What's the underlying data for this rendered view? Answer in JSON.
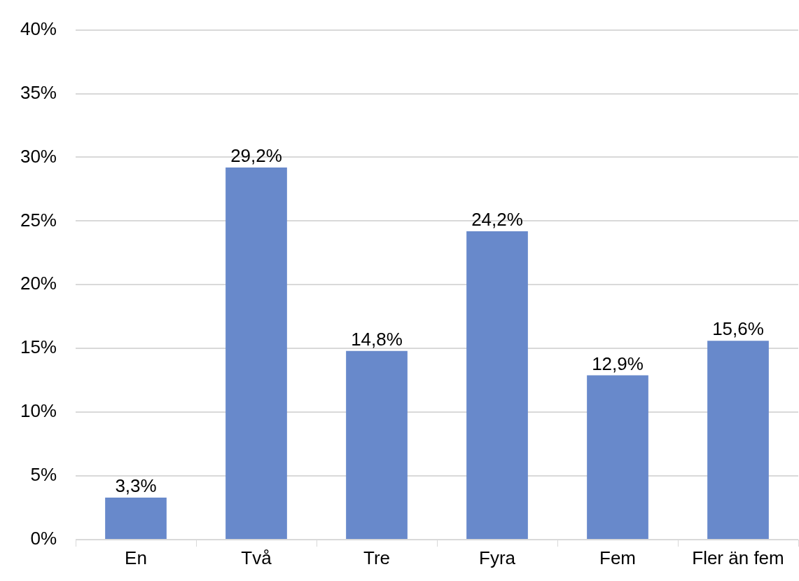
{
  "chart_data": {
    "type": "bar",
    "categories": [
      "En",
      "Två",
      "Tre",
      "Fyra",
      "Fem",
      "Fler än fem"
    ],
    "values": [
      3.3,
      29.2,
      14.8,
      24.2,
      12.9,
      15.6
    ],
    "value_labels": [
      "3,3%",
      "29,2%",
      "14,8%",
      "24,2%",
      "12,9%",
      "15,6%"
    ],
    "color": "#6889cb",
    "ylim": [
      0,
      40
    ],
    "yticks": [
      {
        "value": 0,
        "label": "0%"
      },
      {
        "value": 5,
        "label": "5%"
      },
      {
        "value": 10,
        "label": "10%"
      },
      {
        "value": 15,
        "label": "15%"
      },
      {
        "value": 20,
        "label": "20%"
      },
      {
        "value": 25,
        "label": "25%"
      },
      {
        "value": 30,
        "label": "30%"
      },
      {
        "value": 35,
        "label": "35%"
      },
      {
        "value": 40,
        "label": "40%"
      }
    ],
    "grid": "y",
    "legend": false
  }
}
